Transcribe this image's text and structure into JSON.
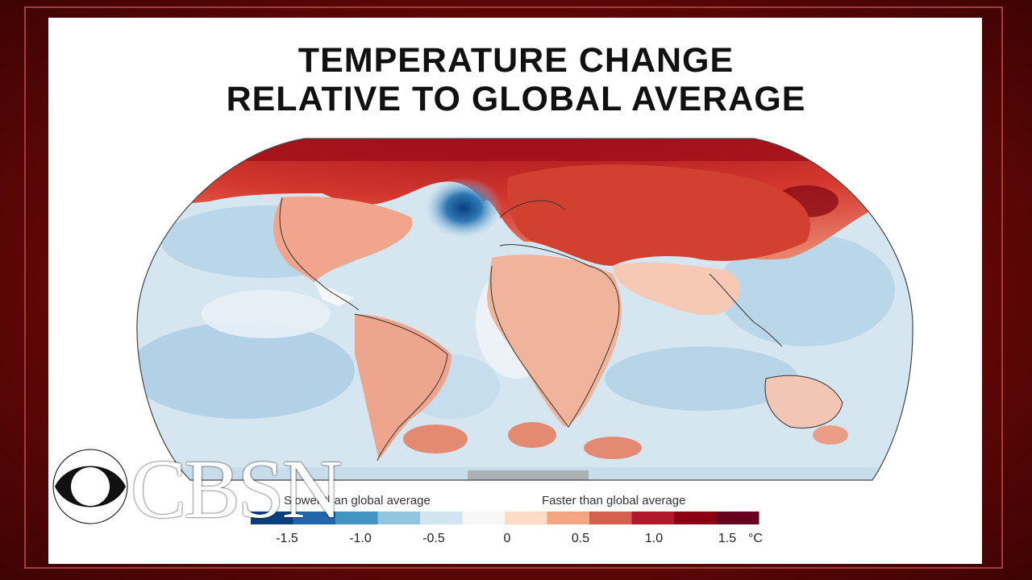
{
  "title": {
    "line1": "TEMPERATURE CHANGE",
    "line2": "RELATIVE TO GLOBAL AVERAGE"
  },
  "legend": {
    "slower_label": "Slower than global average",
    "faster_label": "Faster than global average",
    "ticks": [
      "-1.5",
      "-1.0",
      "-0.5",
      "0",
      "0.5",
      "1.0",
      "1.5"
    ],
    "unit": "°C",
    "colors": [
      "#0a3f7e",
      "#2166ac",
      "#4393c3",
      "#92c5de",
      "#d1e5f0",
      "#f7f7f7",
      "#fddbc7",
      "#f4a582",
      "#d6604d",
      "#b2182b",
      "#8b0012",
      "#67001f"
    ]
  },
  "logo": {
    "text": "CBSN"
  },
  "colors": {
    "frame": "#6e0808",
    "ocean_base": "#d3e4f0",
    "cool_spot": "#0b4a8f",
    "warm_arctic": "#c8201e"
  }
}
